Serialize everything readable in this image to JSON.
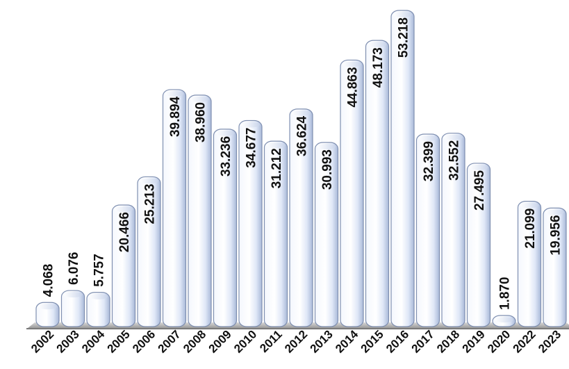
{
  "chart_data": {
    "type": "bar",
    "title": "",
    "xlabel": "",
    "ylabel": "",
    "categories": [
      "2002",
      "2003",
      "2004",
      "2005",
      "2006",
      "2007",
      "2008",
      "2009",
      "2010",
      "2011",
      "2012",
      "2013",
      "2014",
      "2015",
      "2016",
      "2017",
      "2018",
      "2019",
      "2020",
      "2022",
      "2023"
    ],
    "values": [
      4.068,
      6.076,
      5.757,
      20.466,
      25.213,
      39.894,
      38.96,
      33.236,
      34.677,
      31.212,
      36.624,
      30.993,
      44.863,
      48.173,
      53.218,
      32.399,
      32.552,
      27.495,
      1.87,
      21.099,
      19.956
    ],
    "value_labels": [
      "4.068",
      "6.076",
      "5.757",
      "20.466",
      "25.213",
      "39.894",
      "38.960",
      "33.236",
      "34.677",
      "31.212",
      "36.624",
      "30.993",
      "44.863",
      "48.173",
      "53.218",
      "32.399",
      "32.552",
      "27.495",
      "1.870",
      "21.099",
      "19.956"
    ],
    "ylim": [
      0,
      53.218
    ],
    "grid": false,
    "legend": "none",
    "bar_color": "#dfe7f7",
    "axis_color": "#7a7a7a"
  }
}
